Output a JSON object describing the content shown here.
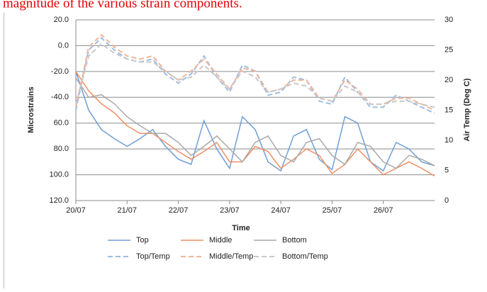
{
  "heading": "magnitude of the various strain components.",
  "chart_data": {
    "type": "line",
    "x_label": "Time",
    "y_label": "Microstrains",
    "y2_label": "Air Temp (Deg C)",
    "x": [
      0,
      0.25,
      0.5,
      0.75,
      1,
      1.25,
      1.5,
      1.75,
      2,
      2.25,
      2.5,
      2.75,
      3,
      3.25,
      3.5,
      3.75,
      4,
      4.25,
      4.5,
      4.75,
      5,
      5.25,
      5.5,
      5.75,
      6,
      6.25,
      6.5,
      6.75,
      7
    ],
    "xlim": [
      0,
      7
    ],
    "xticks": [
      {
        "value": 0,
        "label": "20/07"
      },
      {
        "value": 1,
        "label": "21/07"
      },
      {
        "value": 2,
        "label": "22/07"
      },
      {
        "value": 3,
        "label": "23/07"
      },
      {
        "value": 4,
        "label": "24/07"
      },
      {
        "value": 5,
        "label": "25/07"
      },
      {
        "value": 6,
        "label": "26/07"
      }
    ],
    "ylim": [
      -120,
      20
    ],
    "yticks": [
      {
        "value": 20,
        "label": "20.0"
      },
      {
        "value": 0,
        "label": "0.0"
      },
      {
        "value": -20,
        "label": "-20.0"
      },
      {
        "value": -40,
        "label": "-40.0"
      },
      {
        "value": -60,
        "label": "60.0"
      },
      {
        "value": -80,
        "label": "80.0"
      },
      {
        "value": -100,
        "label": "100.0"
      },
      {
        "value": -120,
        "label": "120.0"
      }
    ],
    "y2lim": [
      0,
      30
    ],
    "y2ticks": [
      0,
      5,
      10,
      15,
      20,
      25,
      30
    ],
    "grid": true,
    "legend": "bottom",
    "series": [
      {
        "name": "Top",
        "color": "#6e9fd6",
        "dashed": false,
        "values": [
          -20,
          -50,
          -65,
          -72,
          -78,
          -72,
          -65,
          -78,
          -88,
          -92,
          -58,
          -80,
          -95,
          -55,
          -65,
          -90,
          -97,
          -70,
          -65,
          -88,
          -96,
          -55,
          -60,
          -90,
          -97,
          -75,
          -80,
          -90,
          -93
        ]
      },
      {
        "name": "Middle",
        "color": "#ef8f66",
        "dashed": false,
        "values": [
          -20,
          -35,
          -45,
          -52,
          -62,
          -68,
          -68,
          -75,
          -82,
          -88,
          -82,
          -75,
          -90,
          -90,
          -78,
          -82,
          -95,
          -88,
          -80,
          -85,
          -99,
          -92,
          -80,
          -90,
          -100,
          -95,
          -90,
          -95,
          -101
        ]
      },
      {
        "name": "Bottom",
        "color": "#a9a9a9",
        "dashed": false,
        "values": [
          -25,
          -40,
          -38,
          -45,
          -55,
          -62,
          -68,
          -68,
          -75,
          -85,
          -78,
          -70,
          -80,
          -90,
          -75,
          -70,
          -85,
          -90,
          -75,
          -72,
          -85,
          -92,
          -75,
          -78,
          -90,
          -95,
          -85,
          -88,
          -93
        ]
      },
      {
        "name": "Top/Temp",
        "color": "#9cbde6",
        "dashed": true,
        "axis": "y2",
        "values": [
          15,
          25,
          27,
          25,
          23.5,
          23,
          23.5,
          21,
          19.5,
          21,
          24,
          20.5,
          18,
          22.5,
          21.5,
          17.5,
          18,
          20.5,
          20,
          16.5,
          16,
          20.5,
          18,
          15.5,
          15.5,
          17.5,
          16.5,
          15.5,
          14.5
        ]
      },
      {
        "name": "Middle/Temp",
        "color": "#f4b598",
        "dashed": true,
        "axis": "y2",
        "values": [
          15.5,
          25.5,
          27.5,
          25.5,
          24,
          23.5,
          24,
          21.5,
          20,
          21.5,
          23.5,
          21,
          18.5,
          22,
          21.5,
          18,
          18.5,
          20,
          20,
          17,
          16.5,
          20,
          18.5,
          16,
          16,
          17,
          17,
          16,
          15
        ]
      },
      {
        "name": "Bottom/Temp",
        "color": "#c8c8c8",
        "dashed": true,
        "axis": "y2",
        "values": [
          16,
          24,
          26,
          24.5,
          23.5,
          23,
          23,
          21.5,
          20,
          20.5,
          22.5,
          20.5,
          18.5,
          21.5,
          20.5,
          18,
          18.5,
          19.5,
          19,
          17,
          16.5,
          19,
          18,
          16,
          16,
          16.5,
          16.5,
          16,
          15.5
        ]
      }
    ]
  }
}
